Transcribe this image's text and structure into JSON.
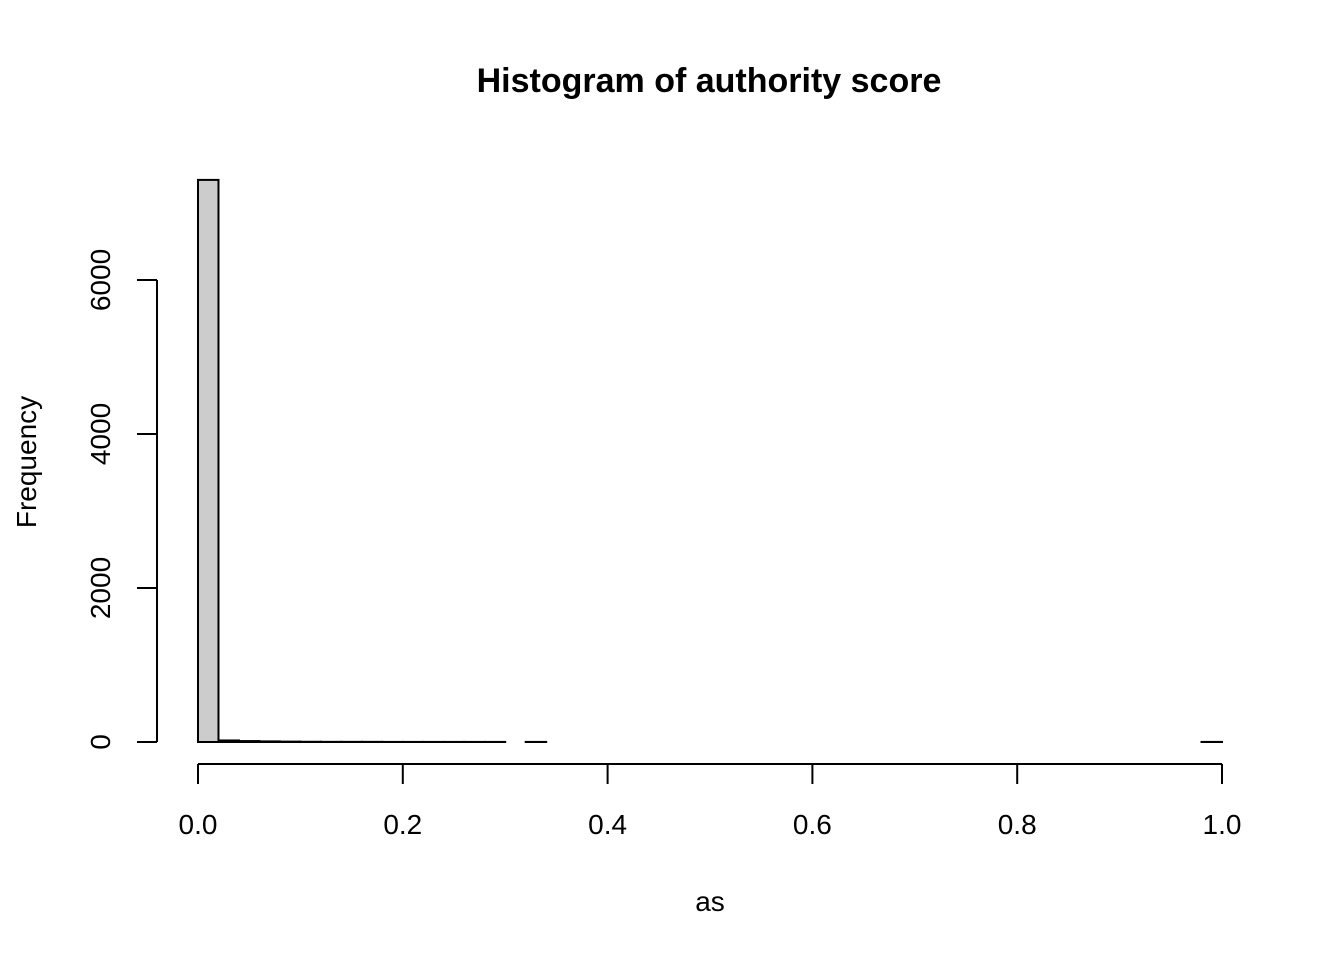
{
  "chart_data": {
    "type": "bar",
    "subtype": "histogram",
    "title": "Histogram of authority score",
    "xlabel": "as",
    "ylabel": "Frequency",
    "xlim": [
      0,
      1
    ],
    "ylim": [
      0,
      7300
    ],
    "x_ticks": [
      0,
      0.2,
      0.4,
      0.6,
      0.8,
      1
    ],
    "x_tick_labels": [
      "0.0",
      "0.2",
      "0.4",
      "0.6",
      "0.8",
      "1.0"
    ],
    "y_ticks": [
      0,
      2000,
      4000,
      6000
    ],
    "y_tick_labels": [
      "0",
      "2000",
      "4000",
      "6000"
    ],
    "bin_width": 0.02,
    "bins_start": [
      0,
      0.02,
      0.04,
      0.06,
      0.08,
      0.1,
      0.12,
      0.14,
      0.16,
      0.18,
      0.2,
      0.22,
      0.24,
      0.26,
      0.28,
      0.3,
      0.32,
      0.34,
      0.36,
      0.38,
      0.4,
      0.42,
      0.44,
      0.46,
      0.48,
      0.5,
      0.52,
      0.54,
      0.56,
      0.58,
      0.6,
      0.62,
      0.64,
      0.66,
      0.68,
      0.7,
      0.72,
      0.74,
      0.76,
      0.78,
      0.8,
      0.82,
      0.84,
      0.86,
      0.88,
      0.9,
      0.92,
      0.94,
      0.96,
      0.98
    ],
    "values": [
      7300,
      20,
      12,
      8,
      5,
      3,
      2,
      2,
      2,
      1,
      1,
      1,
      1,
      1,
      1,
      0,
      1,
      0,
      0,
      0,
      0,
      0,
      0,
      0,
      0,
      0,
      0,
      0,
      0,
      0,
      0,
      0,
      0,
      0,
      0,
      0,
      0,
      0,
      0,
      0,
      0,
      0,
      0,
      0,
      0,
      0,
      0,
      0,
      0,
      1
    ],
    "bar_fill": "#cccccc",
    "bar_stroke": "#000000",
    "grid": false,
    "legend": "none"
  }
}
